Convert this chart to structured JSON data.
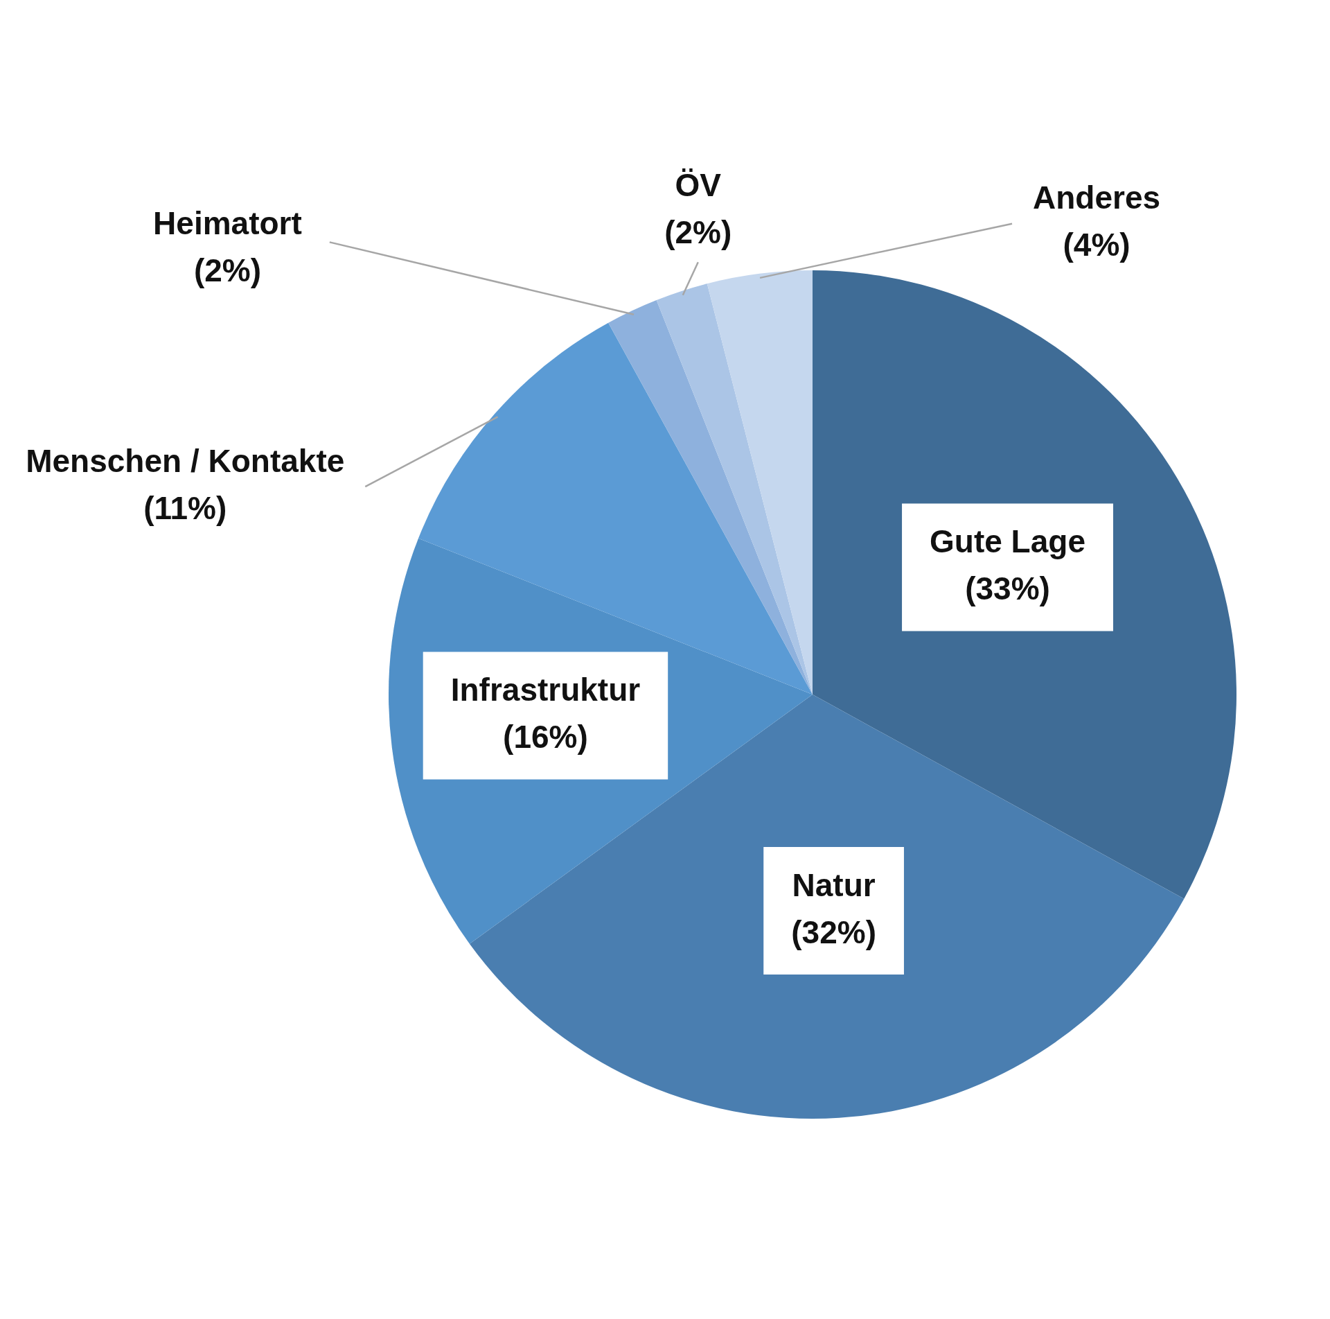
{
  "chart_data": {
    "type": "pie",
    "categories": [
      "Gute Lage",
      "Natur",
      "Infrastruktur",
      "Menschen / Kontakte",
      "Heimatort",
      "ÖV",
      "Anderes"
    ],
    "values": [
      33,
      32,
      16,
      11,
      2,
      2,
      4
    ],
    "value_labels": [
      "(33%)",
      "(32%)",
      "(16%)",
      "(11%)",
      "(2%)",
      "(2%)",
      "(4%)"
    ],
    "colors": [
      "#3f6c96",
      "#4a7eb0",
      "#5090c8",
      "#5b9bd5",
      "#8eb1dd",
      "#abc5e6",
      "#c5d7ee"
    ],
    "legend": false
  }
}
